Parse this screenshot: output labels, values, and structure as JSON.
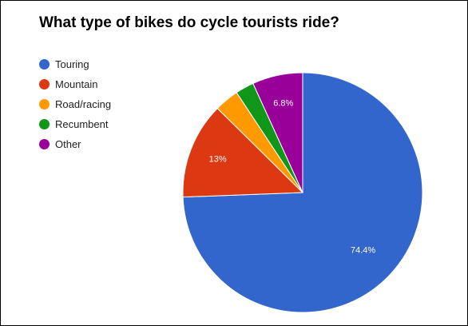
{
  "chart_data": {
    "type": "pie",
    "title": "What type of bikes do cycle tourists ride?",
    "categories": [
      "Touring",
      "Mountain",
      "Road/racing",
      "Recumbent",
      "Other"
    ],
    "values": [
      74.4,
      13,
      3.3,
      2.5,
      6.8
    ],
    "data_labels": [
      "74.4%",
      "13%",
      "",
      "",
      "6.8%"
    ],
    "colors": [
      "#3366cc",
      "#dc3912",
      "#ff9900",
      "#109618",
      "#990099"
    ],
    "legend_position": "left",
    "start_angle": "12 o'clock, clockwise"
  }
}
